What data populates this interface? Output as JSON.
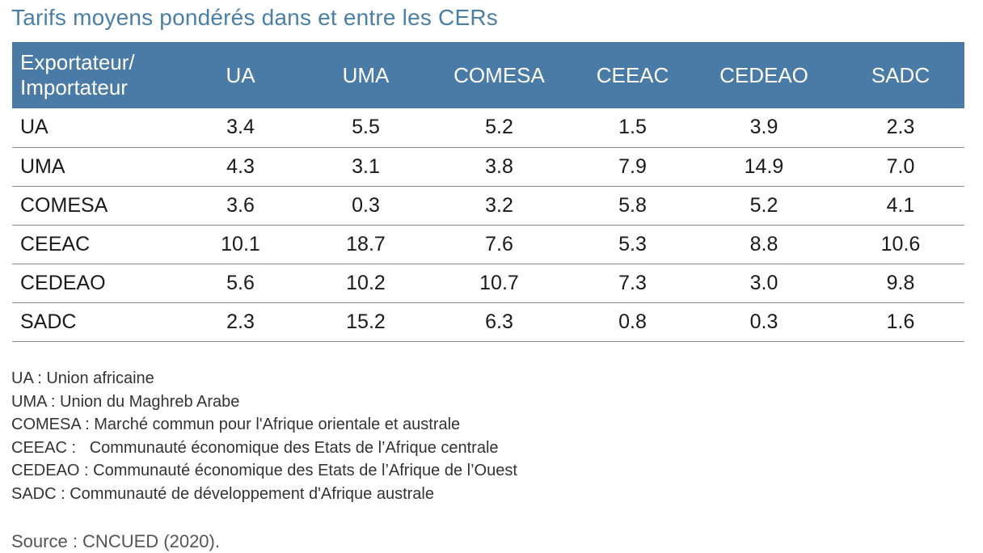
{
  "title": "Tarifs moyens pondérés dans et entre les CERs",
  "table": {
    "corner_line1": "Exportateur/",
    "corner_line2": "Importateur",
    "columns": [
      "UA",
      "UMA",
      "COMESA",
      "CEEAC",
      "CEDEAO",
      "SADC"
    ],
    "rows": [
      {
        "label": "UA",
        "values": [
          "3.4",
          "5.5",
          "5.2",
          "1.5",
          "3.9",
          "2.3"
        ]
      },
      {
        "label": "UMA",
        "values": [
          "4.3",
          "3.1",
          "3.8",
          "7.9",
          "14.9",
          "7.0"
        ]
      },
      {
        "label": "COMESA",
        "values": [
          "3.6",
          "0.3",
          "3.2",
          "5.8",
          "5.2",
          "4.1"
        ]
      },
      {
        "label": "CEEAC",
        "values": [
          "10.1",
          "18.7",
          "7.6",
          "5.3",
          "8.8",
          "10.6"
        ]
      },
      {
        "label": "CEDEAO",
        "values": [
          "5.6",
          "10.2",
          "10.7",
          "7.3",
          "3.0",
          "9.8"
        ]
      },
      {
        "label": "SADC",
        "values": [
          "2.3",
          "15.2",
          "6.3",
          "0.8",
          "0.3",
          "1.6"
        ]
      }
    ]
  },
  "legend": [
    "UA : Union africaine",
    "UMA : Union du Maghreb Arabe",
    "COMESA : Marché commun pour l'Afrique orientale et australe",
    "CEEAC :   Communauté économique des Etats de l’Afrique centrale",
    "CEDEAO : Communauté économique des Etats de l’Afrique de l’Ouest",
    "SADC : Communauté de développement d'Afrique australe"
  ],
  "source": "Source : CNCUED (2020).",
  "colors": {
    "title": "#4a7fa8",
    "header_bg": "#4a7ba6",
    "header_text": "#ffffff",
    "row_border": "#8a8a8a"
  }
}
